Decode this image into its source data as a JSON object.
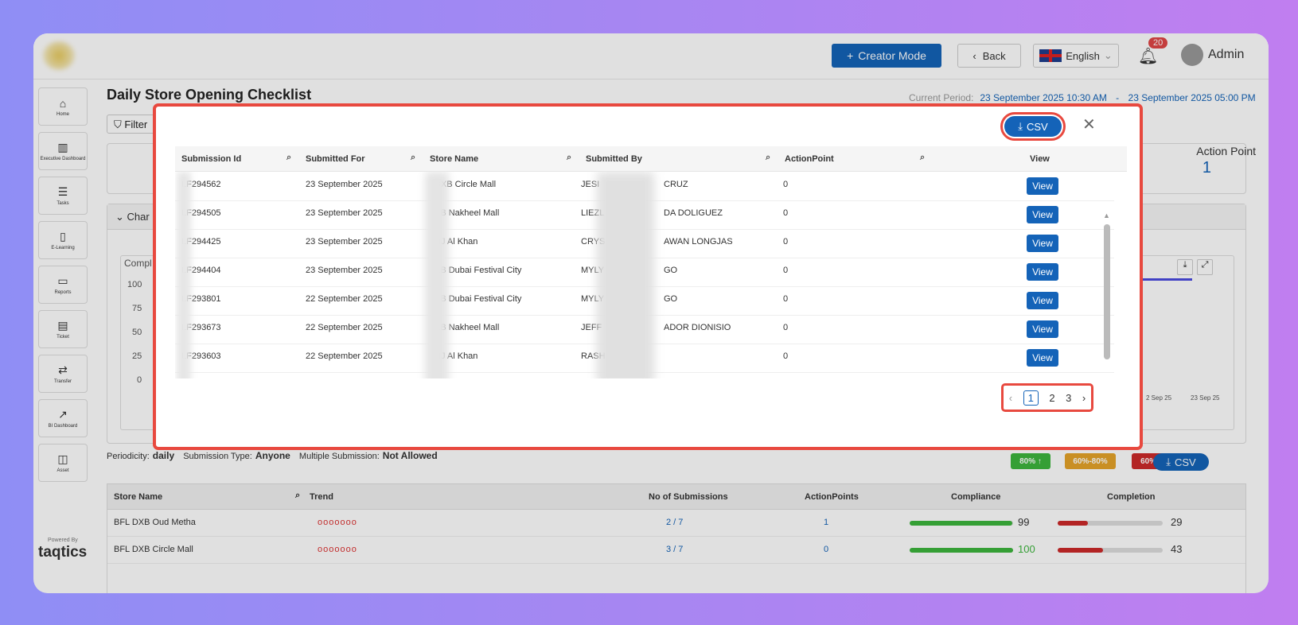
{
  "topbar": {
    "creator_mode": "Creator Mode",
    "back": "Back",
    "language": "English",
    "notif_count": "20",
    "user": "Admin"
  },
  "sidebar": [
    {
      "label": "Home",
      "icon": "home-icon",
      "glyph": "⌂"
    },
    {
      "label": "Executive Dashboard",
      "icon": "chart-icon",
      "glyph": "▥"
    },
    {
      "label": "Tasks",
      "icon": "tasks-icon",
      "glyph": "☰"
    },
    {
      "label": "E-Learning",
      "icon": "book-icon",
      "glyph": "▯"
    },
    {
      "label": "Reports",
      "icon": "presentation-icon",
      "glyph": "▭"
    },
    {
      "label": "Ticket",
      "icon": "ticket-icon",
      "glyph": "▤"
    },
    {
      "label": "Transfer",
      "icon": "transfer-icon",
      "glyph": "⇄"
    },
    {
      "label": "BI Dashboard",
      "icon": "bi-icon",
      "glyph": "↗"
    },
    {
      "label": "Asset",
      "icon": "asset-icon",
      "glyph": "◫"
    }
  ],
  "footer": {
    "powered": "Powered By",
    "brand": "taqtics"
  },
  "page": {
    "title": "Daily Store Opening Checklist",
    "period_label": "Current Period:",
    "period_start": "23 September 2025 10:30 AM",
    "period_sep": "-",
    "period_end": "23 September 2025 05:00 PM",
    "filter": "Filter",
    "action_point_label": "Action Point",
    "action_point_value": "1",
    "chart_head": "Char",
    "chart_title": "Compl",
    "y_ticks": [
      "100",
      "75",
      "50",
      "25",
      "0"
    ],
    "x_ticks": [
      "2 Sep 25",
      "23 Sep 25"
    ]
  },
  "meta": {
    "periodicity_label": "Periodicity:",
    "periodicity": "daily",
    "submission_type_label": "Submission Type:",
    "submission_type": "Anyone",
    "multiple_label": "Multiple Submission:",
    "multiple": "Not Allowed",
    "legend": [
      "80% ↑",
      "60%-80%",
      "60% ↓"
    ],
    "csv": "CSV"
  },
  "store_table": {
    "headers": [
      "Store Name",
      "Trend",
      "No of Submissions",
      "ActionPoints",
      "Compliance",
      "Completion"
    ],
    "rows": [
      {
        "store": "BFL DXB Oud Metha",
        "trend": "ooooooo",
        "subs": "2 / 7",
        "ap": "1",
        "compliance": "99",
        "compliance_frac": 0.99,
        "completion": "29",
        "completion_frac": 0.29
      },
      {
        "store": "BFL DXB Circle Mall",
        "trend": "ooooooo",
        "subs": "3 / 7",
        "ap": "0",
        "compliance": "100",
        "compliance_frac": 1.0,
        "completion": "43",
        "completion_frac": 0.43
      }
    ]
  },
  "modal": {
    "csv": "CSV",
    "headers": [
      "Submission Id",
      "Submitted For",
      "Store Name",
      "Submitted By",
      "ActionPoint",
      "View"
    ],
    "rows": [
      {
        "id": "LF294562",
        "date": "23 September 2025",
        "store": "DXB Circle Mall",
        "by_a": "JESI",
        "by_b": "CRUZ",
        "ap": "0"
      },
      {
        "id": "LF294505",
        "date": "23 September 2025",
        "store": "XB Nakheel Mall",
        "by_a": "LIEZL",
        "by_b": "DA DOLIGUEZ",
        "ap": "0"
      },
      {
        "id": "LF294425",
        "date": "23 September 2025",
        "store": "HJ Al Khan",
        "by_a": "CRYS",
        "by_b": "AWAN LONGJAS",
        "ap": "0"
      },
      {
        "id": "LF294404",
        "date": "23 September 2025",
        "store": "XB Dubai Festival City",
        "by_a": "MYLY",
        "by_b": "GO",
        "ap": "0"
      },
      {
        "id": "LF293801",
        "date": "22 September 2025",
        "store": "XB Dubai Festival City",
        "by_a": "MYLY",
        "by_b": "GO",
        "ap": "0"
      },
      {
        "id": "LF293673",
        "date": "22 September 2025",
        "store": "XB Nakheel Mall",
        "by_a": "JEFF",
        "by_b": "ADOR DIONISIO",
        "ap": "0"
      },
      {
        "id": "LF293603",
        "date": "22 September 2025",
        "store": "HJ Al Khan",
        "by_a": "RASH",
        "by_b": "",
        "ap": "0"
      }
    ],
    "view_label": "View",
    "pages": [
      "1",
      "2",
      "3"
    ],
    "current_page": "1"
  }
}
